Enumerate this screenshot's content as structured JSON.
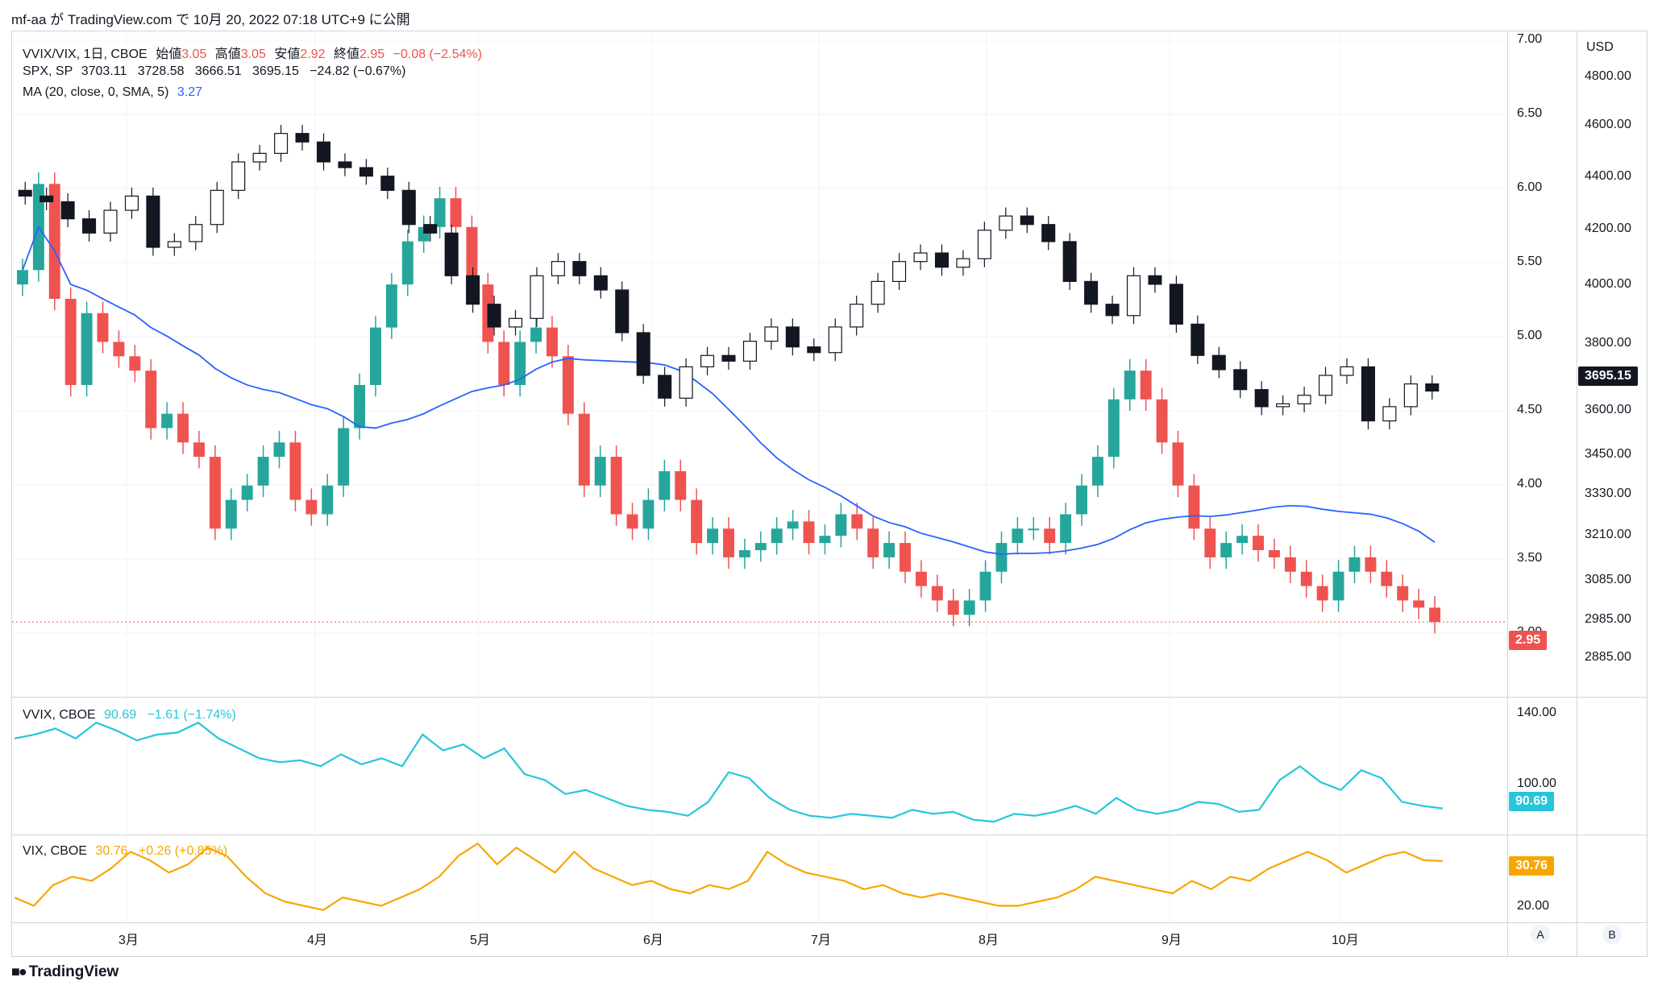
{
  "header": {
    "publisher": "mf-aa が TradingView.com で 10月 20, 2022 07:18 UTC+9 に公開"
  },
  "legend_main": {
    "symbol": "VVIX/VIX, 1日, CBOE",
    "o_label": "始値",
    "o_val": "3.05",
    "h_label": "高値",
    "h_val": "3.05",
    "l_label": "安値",
    "l_val": "2.92",
    "c_label": "終値",
    "c_val": "2.95",
    "change": "−0.08 (−2.54%)"
  },
  "legend_spx": {
    "symbol": "SPX, SP",
    "values": "3703.11   3728.58   3666.51   3695.15   −24.82 (−0.67%)"
  },
  "legend_ma": {
    "label": "MA (20, close, 0, SMA, 5)",
    "value": "3.27"
  },
  "legend_vvix": {
    "symbol": "VVIX, CBOE",
    "values": "90.69   −1.61 (−1.74%)"
  },
  "legend_vix": {
    "symbol": "VIX, CBOE",
    "values": "30.76   +0.26 (+0.85%)"
  },
  "axis": {
    "left_ticks": [
      "7.00",
      "6.50",
      "6.00",
      "5.50",
      "5.00",
      "4.50",
      "4.00",
      "3.50",
      "3.00"
    ],
    "right_unit": "USD",
    "right_ticks": [
      "4800.00",
      "4600.00",
      "4400.00",
      "4200.00",
      "4000.00",
      "3800.00",
      "3600.00",
      "3450.00",
      "3330.00",
      "3210.00",
      "3085.00",
      "2985.00",
      "2885.00"
    ],
    "vvix_ticks": [
      "140.00",
      "100.00"
    ],
    "vix_ticks": [
      "20.00"
    ],
    "months": [
      "3月",
      "4月",
      "5月",
      "6月",
      "7月",
      "8月",
      "9月",
      "10月"
    ]
  },
  "price_tags": {
    "spx": "3695.15",
    "ratio": "2.95",
    "vvix": "90.69",
    "vix": "30.76"
  },
  "buttons": {
    "a": "A",
    "b": "B"
  },
  "branding": {
    "name": "TradingView"
  },
  "colors": {
    "up": "#26a69a",
    "down": "#ef5350",
    "ma": "#2962ff",
    "vvix": "#26c6da",
    "vix": "#f7a600",
    "spx": "#131722"
  },
  "chart_data": [
    {
      "type": "candlestick",
      "name": "VVIX/VIX",
      "ylim": [
        2.85,
        7.0
      ],
      "closes": [
        5.4,
        6.0,
        5.2,
        4.6,
        5.1,
        4.9,
        4.8,
        4.7,
        4.3,
        4.4,
        4.2,
        4.1,
        3.6,
        3.8,
        3.9,
        4.1,
        4.2,
        3.8,
        3.7,
        3.9,
        4.3,
        4.6,
        5.0,
        5.3,
        5.6,
        5.7,
        5.9,
        5.7,
        5.3,
        4.9,
        4.6,
        4.9,
        5.0,
        4.8,
        4.4,
        3.9,
        4.1,
        3.7,
        3.6,
        3.8,
        4.0,
        3.8,
        3.5,
        3.6,
        3.4,
        3.45,
        3.5,
        3.6,
        3.65,
        3.5,
        3.55,
        3.7,
        3.6,
        3.4,
        3.5,
        3.3,
        3.2,
        3.1,
        3.0,
        3.1,
        3.3,
        3.5,
        3.6,
        3.6,
        3.5,
        3.7,
        3.9,
        4.1,
        4.5,
        4.7,
        4.5,
        4.2,
        3.9,
        3.6,
        3.4,
        3.5,
        3.55,
        3.45,
        3.4,
        3.3,
        3.2,
        3.1,
        3.3,
        3.4,
        3.3,
        3.2,
        3.1,
        3.05,
        2.95
      ],
      "ma20_last": 3.27
    },
    {
      "type": "candlestick",
      "name": "SPX",
      "ylim": [
        2885,
        4800
      ],
      "closes": [
        4380,
        4360,
        4300,
        4250,
        4330,
        4380,
        4200,
        4220,
        4280,
        4400,
        4500,
        4530,
        4600,
        4570,
        4500,
        4480,
        4450,
        4400,
        4280,
        4250,
        4100,
        4000,
        3920,
        3950,
        4100,
        4150,
        4100,
        4050,
        3900,
        3750,
        3670,
        3780,
        3820,
        3800,
        3870,
        3920,
        3850,
        3830,
        3920,
        4000,
        4080,
        4150,
        4180,
        4130,
        4160,
        4260,
        4310,
        4280,
        4220,
        4080,
        4000,
        3960,
        4100,
        4070,
        3930,
        3820,
        3770,
        3700,
        3640,
        3650,
        3680,
        3750,
        3780,
        3590,
        3640,
        3720,
        3695
      ],
      "last": 3695.15
    },
    {
      "type": "line",
      "name": "VVIX",
      "ylim": [
        80,
        145
      ],
      "values": [
        126,
        128,
        131,
        126,
        134,
        130,
        125,
        128,
        129,
        134,
        126,
        121,
        116,
        114,
        115,
        112,
        118,
        113,
        116,
        112,
        128,
        120,
        123,
        116,
        121,
        108,
        105,
        98,
        100,
        96,
        92,
        90,
        89,
        87,
        94,
        109,
        106,
        96,
        90,
        87,
        86,
        88,
        87,
        86,
        90,
        88,
        89,
        85,
        84,
        88,
        87,
        89,
        92,
        88,
        96,
        90,
        88,
        90,
        94,
        93,
        89,
        90,
        105,
        112,
        104,
        100,
        110,
        106,
        94,
        92,
        90.69
      ],
      "last": 90.69
    },
    {
      "type": "line",
      "name": "VIX",
      "ylim": [
        17,
        36
      ],
      "values": [
        22,
        20,
        25,
        27,
        26,
        29,
        33,
        31,
        28,
        30,
        34,
        32,
        27,
        23,
        21,
        20,
        19,
        22,
        21,
        20,
        22,
        24,
        27,
        32,
        35,
        30,
        34,
        31,
        28,
        33,
        29,
        27,
        25,
        26,
        24,
        23,
        25,
        24,
        26,
        33,
        30,
        28,
        27,
        26,
        24,
        25,
        23,
        22,
        23,
        22,
        21,
        20,
        20,
        21,
        22,
        24,
        27,
        26,
        25,
        24,
        23,
        26,
        24,
        27,
        26,
        29,
        31,
        33,
        31,
        28,
        30,
        32,
        33,
        31,
        30.76
      ],
      "last": 30.76
    }
  ]
}
